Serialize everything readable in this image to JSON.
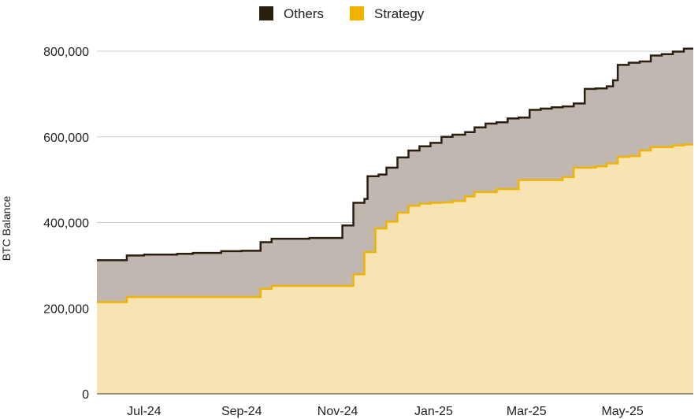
{
  "chart_data": {
    "type": "area",
    "stacked": true,
    "step": true,
    "title": "",
    "xlabel": "",
    "ylabel": "BTC Balance",
    "ylim": [
      0,
      800000
    ],
    "yticks": [
      0,
      200000,
      400000,
      600000,
      800000
    ],
    "ytick_labels": [
      "0",
      "200,000",
      "400,000",
      "600,000",
      "800,000"
    ],
    "grid": true,
    "legend_position": "top-center",
    "x_range": [
      "2024-06-01",
      "2025-06-15"
    ],
    "xticks": [
      {
        "date": "2024-07-01",
        "label": "Jul-24"
      },
      {
        "date": "2024-09-01",
        "label": "Sep-24"
      },
      {
        "date": "2024-11-01",
        "label": "Nov-24"
      },
      {
        "date": "2025-01-01",
        "label": "Jan-25"
      },
      {
        "date": "2025-03-01",
        "label": "Mar-25"
      },
      {
        "date": "2025-05-01",
        "label": "May-25"
      }
    ],
    "colors": {
      "others_fill": "#bfb7b0",
      "others_line": "#2a1e0e",
      "strategy_fill": "#f8e4b2",
      "strategy_line": "#f0b400",
      "grid": "#cccccc"
    },
    "series": [
      {
        "name": "Strategy",
        "role": "base",
        "points": [
          [
            "2024-06-01",
            214000
          ],
          [
            "2024-06-20",
            226000
          ],
          [
            "2024-08-01",
            226000
          ],
          [
            "2024-09-13",
            245000
          ],
          [
            "2024-09-20",
            252000
          ],
          [
            "2024-10-31",
            252000
          ],
          [
            "2024-11-11",
            279000
          ],
          [
            "2024-11-18",
            331000
          ],
          [
            "2024-11-25",
            386000
          ],
          [
            "2024-12-02",
            402000
          ],
          [
            "2024-12-09",
            423000
          ],
          [
            "2024-12-16",
            439000
          ],
          [
            "2024-12-23",
            444000
          ],
          [
            "2024-12-30",
            446000
          ],
          [
            "2025-01-06",
            447000
          ],
          [
            "2025-01-13",
            450000
          ],
          [
            "2025-01-21",
            461000
          ],
          [
            "2025-01-27",
            471000
          ],
          [
            "2025-02-10",
            478000
          ],
          [
            "2025-02-24",
            499000
          ],
          [
            "2025-03-17",
            499000
          ],
          [
            "2025-03-24",
            506000
          ],
          [
            "2025-03-31",
            528000
          ],
          [
            "2025-04-14",
            531000
          ],
          [
            "2025-04-21",
            538000
          ],
          [
            "2025-04-28",
            553000
          ],
          [
            "2025-05-05",
            555000
          ],
          [
            "2025-05-12",
            568000
          ],
          [
            "2025-05-19",
            576000
          ],
          [
            "2025-06-02",
            580000
          ],
          [
            "2025-06-09",
            582000
          ],
          [
            "2025-06-15",
            582000
          ]
        ]
      },
      {
        "name": "Others",
        "role": "total",
        "points": [
          [
            "2024-06-01",
            312000
          ],
          [
            "2024-06-20",
            323000
          ],
          [
            "2024-07-01",
            325000
          ],
          [
            "2024-07-22",
            327000
          ],
          [
            "2024-08-01",
            329000
          ],
          [
            "2024-08-19",
            333000
          ],
          [
            "2024-09-01",
            334000
          ],
          [
            "2024-09-13",
            354000
          ],
          [
            "2024-09-20",
            362000
          ],
          [
            "2024-10-14",
            364000
          ],
          [
            "2024-10-28",
            364000
          ],
          [
            "2024-11-04",
            393000
          ],
          [
            "2024-11-11",
            446000
          ],
          [
            "2024-11-18",
            455000
          ],
          [
            "2024-11-20",
            508000
          ],
          [
            "2024-11-27",
            512000
          ],
          [
            "2024-12-02",
            528000
          ],
          [
            "2024-12-09",
            552000
          ],
          [
            "2024-12-16",
            568000
          ],
          [
            "2024-12-23",
            578000
          ],
          [
            "2024-12-30",
            586000
          ],
          [
            "2025-01-06",
            600000
          ],
          [
            "2025-01-13",
            605000
          ],
          [
            "2025-01-21",
            611000
          ],
          [
            "2025-01-27",
            622000
          ],
          [
            "2025-02-03",
            631000
          ],
          [
            "2025-02-10",
            634000
          ],
          [
            "2025-02-17",
            643000
          ],
          [
            "2025-02-24",
            645000
          ],
          [
            "2025-03-03",
            663000
          ],
          [
            "2025-03-10",
            666000
          ],
          [
            "2025-03-17",
            669000
          ],
          [
            "2025-03-24",
            671000
          ],
          [
            "2025-03-31",
            678000
          ],
          [
            "2025-04-07",
            712000
          ],
          [
            "2025-04-14",
            713000
          ],
          [
            "2025-04-21",
            718000
          ],
          [
            "2025-04-25",
            732000
          ],
          [
            "2025-04-28",
            768000
          ],
          [
            "2025-05-05",
            773000
          ],
          [
            "2025-05-12",
            776000
          ],
          [
            "2025-05-19",
            790000
          ],
          [
            "2025-05-26",
            793000
          ],
          [
            "2025-06-02",
            799000
          ],
          [
            "2025-06-09",
            806000
          ],
          [
            "2025-06-15",
            806000
          ]
        ]
      }
    ],
    "legend": [
      {
        "label": "Others",
        "color": "#2a1e0e"
      },
      {
        "label": "Strategy",
        "color": "#f0b400"
      }
    ]
  }
}
